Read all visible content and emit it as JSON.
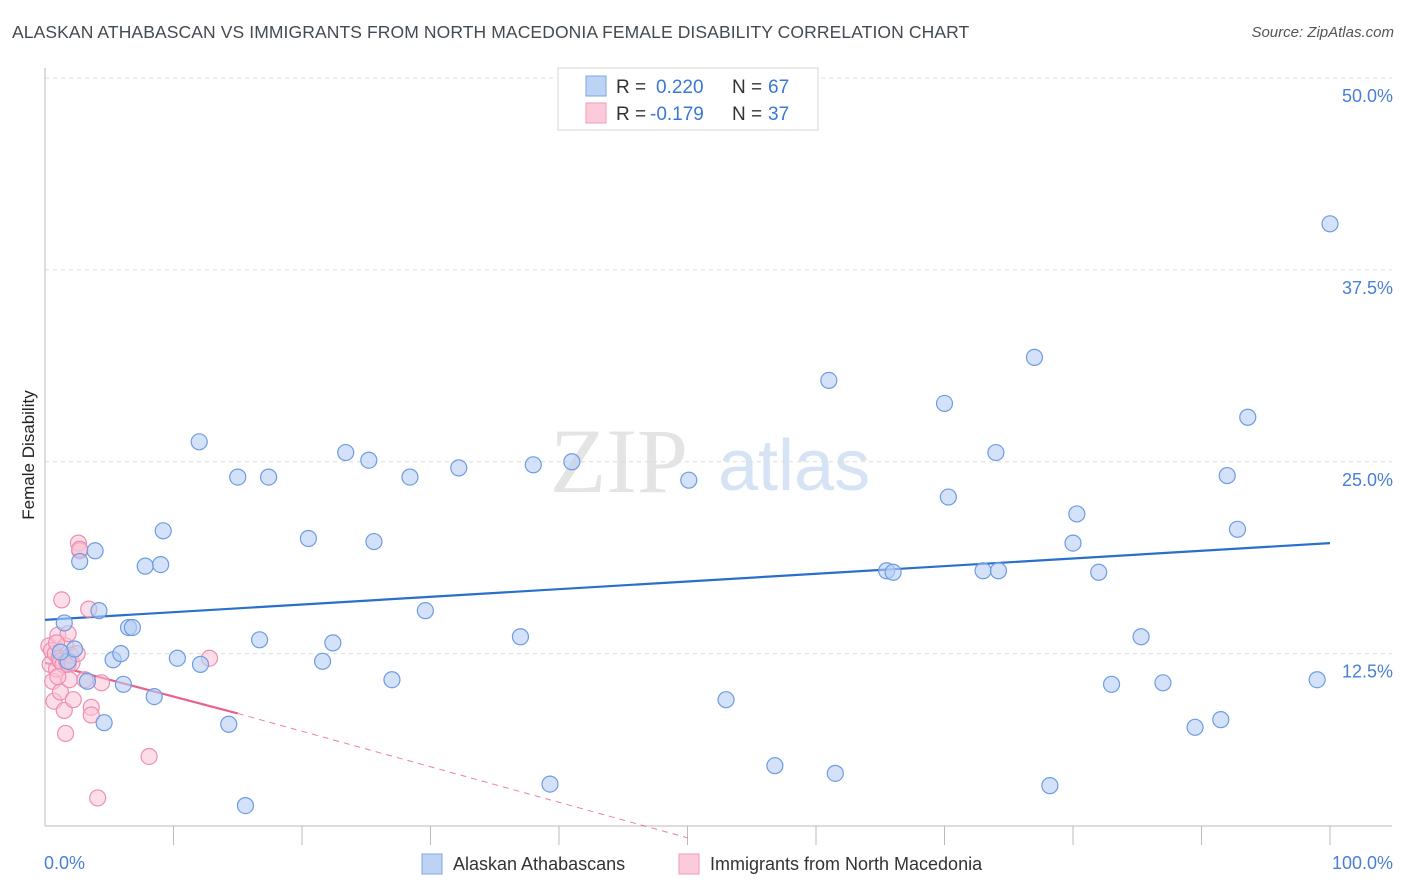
{
  "header": {
    "title": "ALASKAN ATHABASCAN VS IMMIGRANTS FROM NORTH MACEDONIA FEMALE DISABILITY CORRELATION CHART",
    "source": "Source: ZipAtlas.com"
  },
  "watermark": {
    "zip": "ZIP",
    "atlas": "atlas"
  },
  "stats_legend": [
    {
      "r_label": "R =",
      "r_value": "0.220",
      "n_label": "N =",
      "n_value": "67",
      "fill": "#bcd3f5",
      "stroke": "#7fa7e3"
    },
    {
      "r_label": "R =",
      "r_value": "-0.179",
      "n_label": "N =",
      "n_value": "37",
      "fill": "#fbcbdb",
      "stroke": "#f09bb7"
    }
  ],
  "bottom_legend": [
    {
      "label": "Alaskan Athabascans"
    },
    {
      "label": "Immigrants from North Macedonia"
    }
  ],
  "colors": {
    "blue_fill": "#b6cff3",
    "blue_stroke": "#6f9ce0",
    "blue_line": "#2a6fcc",
    "pink_fill": "#f9c3d5",
    "pink_stroke": "#ee8fb1",
    "pink_line": "#e8608e",
    "grid": "#dcdcdc",
    "axis_label": "#4a7fd4"
  },
  "chart_data": {
    "type": "scatter",
    "title": "ALASKAN ATHABASCAN VS IMMIGRANTS FROM NORTH MACEDONIA FEMALE DISABILITY CORRELATION CHART",
    "xlabel": "",
    "ylabel": "Female Disability",
    "xlim": [
      0,
      100
    ],
    "ylim": [
      0,
      50
    ],
    "x_tick_labels": [
      "0.0%",
      "100.0%"
    ],
    "y_ticks": [
      12.5,
      25.0,
      37.5,
      50.0
    ],
    "y_tick_labels": [
      "12.5%",
      "25.0%",
      "37.5%",
      "50.0%"
    ],
    "series": [
      {
        "name": "Alaskan Athabascans",
        "R": 0.22,
        "N": 67,
        "trend": {
          "x0": 0,
          "y0": 14.7,
          "x1": 100,
          "y1": 19.7
        },
        "points": [
          [
            1.5,
            14.5
          ],
          [
            1.8,
            12.0
          ],
          [
            2.3,
            12.8
          ],
          [
            2.7,
            18.5
          ],
          [
            3.3,
            10.7
          ],
          [
            3.9,
            19.2
          ],
          [
            4.2,
            15.3
          ],
          [
            4.6,
            8.0
          ],
          [
            5.3,
            12.1
          ],
          [
            5.9,
            12.5
          ],
          [
            6.1,
            10.5
          ],
          [
            6.5,
            14.2
          ],
          [
            7.8,
            18.2
          ],
          [
            8.5,
            9.7
          ],
          [
            9.0,
            18.3
          ],
          [
            9.2,
            20.5
          ],
          [
            10.3,
            12.2
          ],
          [
            12.0,
            26.3
          ],
          [
            12.1,
            11.8
          ],
          [
            14.3,
            7.9
          ],
          [
            15.0,
            24.0
          ],
          [
            15.6,
            2.6
          ],
          [
            16.7,
            13.4
          ],
          [
            17.4,
            24.0
          ],
          [
            20.5,
            20.0
          ],
          [
            21.6,
            12.0
          ],
          [
            22.4,
            13.2
          ],
          [
            23.4,
            25.6
          ],
          [
            25.2,
            25.1
          ],
          [
            25.6,
            19.8
          ],
          [
            27.0,
            10.8
          ],
          [
            28.4,
            24.0
          ],
          [
            29.6,
            15.3
          ],
          [
            32.2,
            24.6
          ],
          [
            37.0,
            13.6
          ],
          [
            38.0,
            24.8
          ],
          [
            39.3,
            4.0
          ],
          [
            41.0,
            25.0
          ],
          [
            50.1,
            23.8
          ],
          [
            53.0,
            9.5
          ],
          [
            56.8,
            5.2
          ],
          [
            61.0,
            30.3
          ],
          [
            61.5,
            4.7
          ],
          [
            65.5,
            17.9
          ],
          [
            66.0,
            17.8
          ],
          [
            70.0,
            28.8
          ],
          [
            70.3,
            22.7
          ],
          [
            73.0,
            17.9
          ],
          [
            74.0,
            25.6
          ],
          [
            74.2,
            17.9
          ],
          [
            77.0,
            31.8
          ],
          [
            78.2,
            3.9
          ],
          [
            80.0,
            19.7
          ],
          [
            80.3,
            21.6
          ],
          [
            82.0,
            17.8
          ],
          [
            83.0,
            10.5
          ],
          [
            85.3,
            13.6
          ],
          [
            87.0,
            10.6
          ],
          [
            89.5,
            7.7
          ],
          [
            91.5,
            8.2
          ],
          [
            92.0,
            24.1
          ],
          [
            92.8,
            20.6
          ],
          [
            93.6,
            27.9
          ],
          [
            99.0,
            10.8
          ],
          [
            100.0,
            40.5
          ],
          [
            1.2,
            12.6
          ],
          [
            6.8,
            14.2
          ]
        ]
      },
      {
        "name": "Immigrants from North Macedonia",
        "R": -0.179,
        "N": 37,
        "trend": {
          "x0": 0,
          "y0": 11.9,
          "x1": 15,
          "y1": 8.6
        },
        "trend_extended": {
          "x0": 15,
          "y0": 8.6,
          "x1": 50,
          "y1": 0.5
        },
        "points": [
          [
            0.3,
            13.0
          ],
          [
            0.4,
            11.8
          ],
          [
            0.5,
            12.7
          ],
          [
            0.6,
            10.7
          ],
          [
            0.7,
            9.4
          ],
          [
            0.8,
            12.5
          ],
          [
            0.9,
            11.5
          ],
          [
            1.0,
            13.7
          ],
          [
            1.1,
            12.2
          ],
          [
            1.2,
            12.0
          ],
          [
            1.2,
            10.0
          ],
          [
            1.3,
            16.0
          ],
          [
            1.4,
            11.8
          ],
          [
            1.5,
            8.8
          ],
          [
            1.6,
            13.0
          ],
          [
            1.6,
            7.3
          ],
          [
            1.7,
            12.0
          ],
          [
            1.8,
            11.8
          ],
          [
            1.8,
            13.8
          ],
          [
            1.9,
            10.8
          ],
          [
            2.0,
            12.4
          ],
          [
            2.1,
            11.9
          ],
          [
            2.2,
            9.5
          ],
          [
            2.5,
            12.5
          ],
          [
            2.6,
            19.7
          ],
          [
            2.7,
            19.2
          ],
          [
            2.7,
            19.3
          ],
          [
            3.1,
            10.8
          ],
          [
            3.4,
            15.4
          ],
          [
            3.6,
            9.0
          ],
          [
            3.6,
            8.5
          ],
          [
            4.1,
            3.1
          ],
          [
            4.4,
            10.6
          ],
          [
            8.1,
            5.8
          ],
          [
            12.8,
            12.2
          ],
          [
            0.9,
            13.2
          ],
          [
            1.0,
            11.0
          ]
        ]
      }
    ]
  }
}
